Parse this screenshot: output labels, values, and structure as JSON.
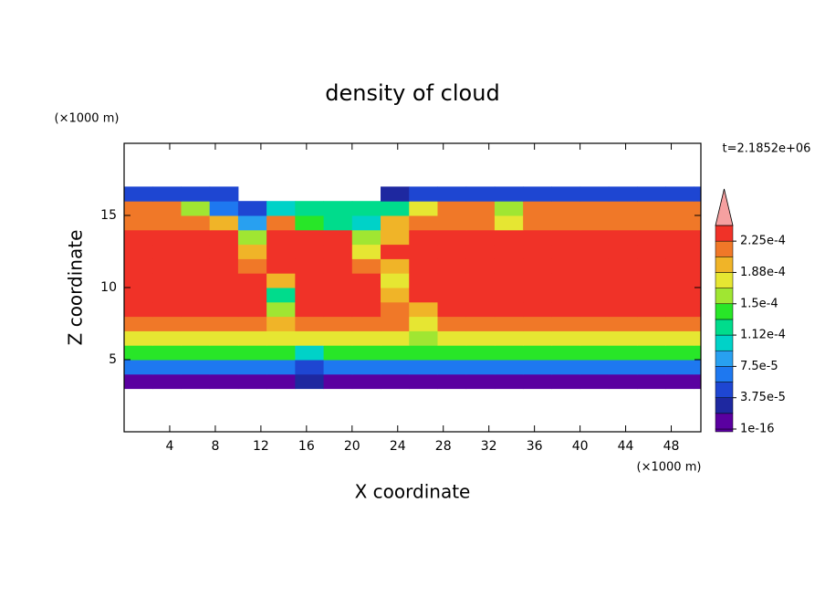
{
  "chart_data": {
    "type": "contour",
    "title": "density of cloud",
    "x_label": "X coordinate",
    "y_label": "Z coordinate",
    "x_unit_label": "(×1000 m)",
    "y_unit_label": "(×1000 m)",
    "time_label": "t=2.1852e+06",
    "xlim": [
      0,
      50.6
    ],
    "ylim": [
      0,
      20
    ],
    "xticks": [
      4,
      8,
      12,
      16,
      20,
      24,
      28,
      32,
      36,
      40,
      44,
      48
    ],
    "yticks": [
      5,
      10,
      15
    ],
    "field": {
      "x": [
        1.25,
        3.75,
        6.25,
        8.75,
        11.25,
        13.75,
        16.25,
        18.75,
        21.25,
        23.75,
        26.25,
        28.75,
        31.25,
        33.75,
        36.25,
        38.75,
        41.25,
        43.75,
        46.25,
        48.75,
        51.25
      ],
      "z": [
        3.5,
        4.5,
        5.5,
        6.5,
        7.5,
        8.5,
        9.5,
        10.5,
        11.5,
        12.5,
        13.5,
        14.5,
        15.5,
        16.5
      ],
      "values": [
        [
          1e-05,
          1e-05,
          1e-05,
          1e-05,
          1e-05,
          1e-05,
          3e-05,
          1e-05,
          1e-05,
          1e-05,
          1e-05,
          1e-05,
          1e-05,
          1e-05,
          1e-05,
          1e-05,
          1e-05,
          1e-05,
          1e-05,
          1e-05,
          1e-05
        ],
        [
          6e-05,
          6e-05,
          6e-05,
          6e-05,
          6e-05,
          6e-05,
          4e-05,
          6e-05,
          6e-05,
          6e-05,
          6e-05,
          6e-05,
          6e-05,
          6e-05,
          6e-05,
          6e-05,
          6e-05,
          6e-05,
          6e-05,
          6e-05,
          6e-05
        ],
        [
          0.00014,
          0.00014,
          0.00014,
          0.00014,
          0.00014,
          0.00014,
          0.0001,
          0.00014,
          0.00014,
          0.00014,
          0.00014,
          0.00014,
          0.00014,
          0.00014,
          0.00014,
          0.00014,
          0.00014,
          0.00014,
          0.00014,
          0.00014,
          0.00014
        ],
        [
          0.00018,
          0.00018,
          0.00018,
          0.00018,
          0.00018,
          0.00018,
          0.00018,
          0.00018,
          0.00018,
          0.00018,
          0.00015,
          0.00018,
          0.00018,
          0.00018,
          0.00018,
          0.00018,
          0.00018,
          0.00018,
          0.00018,
          0.00018,
          0.00018
        ],
        [
          0.00021,
          0.00021,
          0.00021,
          0.00021,
          0.00021,
          0.0002,
          0.00021,
          0.00021,
          0.00021,
          0.00021,
          0.00017,
          0.00021,
          0.00021,
          0.00021,
          0.00021,
          0.00021,
          0.00021,
          0.00021,
          0.00021,
          0.00021,
          0.00021
        ],
        [
          0.00023,
          0.00023,
          0.00023,
          0.00023,
          0.00023,
          0.00015,
          0.00023,
          0.00023,
          0.00023,
          0.00022,
          0.0002,
          0.00023,
          0.00023,
          0.00023,
          0.00023,
          0.00023,
          0.00023,
          0.00023,
          0.00023,
          0.00023,
          0.00023
        ],
        [
          0.00023,
          0.00023,
          0.00023,
          0.00023,
          0.00023,
          0.00012,
          0.00023,
          0.00023,
          0.00023,
          0.00019,
          0.00023,
          0.00023,
          0.00023,
          0.00023,
          0.00023,
          0.00023,
          0.00023,
          0.00023,
          0.00023,
          0.00023,
          0.00023
        ],
        [
          0.00023,
          0.00023,
          0.00023,
          0.00023,
          0.00023,
          0.0002,
          0.00023,
          0.00023,
          0.00023,
          0.00018,
          0.00023,
          0.00023,
          0.00023,
          0.00023,
          0.00023,
          0.00023,
          0.00023,
          0.00023,
          0.00023,
          0.00023,
          0.00023
        ],
        [
          0.00023,
          0.00023,
          0.00023,
          0.00023,
          0.00021,
          0.00023,
          0.00023,
          0.00023,
          0.00021,
          0.00019,
          0.00023,
          0.00023,
          0.00023,
          0.00023,
          0.00023,
          0.00023,
          0.00023,
          0.00023,
          0.00023,
          0.00023,
          0.00023
        ],
        [
          0.00023,
          0.00023,
          0.00023,
          0.00023,
          0.00019,
          0.00023,
          0.00023,
          0.00023,
          0.00017,
          0.00023,
          0.00023,
          0.00023,
          0.00023,
          0.00023,
          0.00023,
          0.00023,
          0.00023,
          0.00023,
          0.00023,
          0.00023,
          0.00023
        ],
        [
          0.00023,
          0.00023,
          0.00023,
          0.00023,
          0.00015,
          0.00023,
          0.00023,
          0.00023,
          0.00016,
          0.0002,
          0.00023,
          0.00023,
          0.00023,
          0.00023,
          0.00023,
          0.00023,
          0.00023,
          0.00023,
          0.00023,
          0.00023,
          0.00023
        ],
        [
          0.00022,
          0.00022,
          0.00022,
          0.00019,
          9e-05,
          0.00021,
          0.00014,
          0.00012,
          0.0001,
          0.00019,
          0.00022,
          0.00022,
          0.00022,
          0.00018,
          0.00022,
          0.00022,
          0.00022,
          0.00022,
          0.00022,
          0.00022,
          0.00022
        ],
        [
          0.00021,
          0.00021,
          0.00016,
          7e-05,
          5e-05,
          0.0001,
          0.00013,
          0.00013,
          0.00013,
          0.00012,
          0.00018,
          0.00021,
          0.00021,
          0.00015,
          0.00021,
          0.00021,
          0.00021,
          0.00021,
          0.00021,
          0.00021,
          0.00021
        ],
        [
          4e-05,
          4e-05,
          4e-05,
          4e-05,
          null,
          null,
          null,
          null,
          null,
          3e-05,
          5e-05,
          5e-05,
          5e-05,
          5e-05,
          5e-05,
          5e-05,
          5e-05,
          5e-05,
          5e-05,
          5e-05,
          5e-05
        ]
      ]
    },
    "colorbar": {
      "levels": [
        1e-16,
        1.875e-05,
        3.75e-05,
        5.625e-05,
        7.5e-05,
        9.375e-05,
        0.0001125,
        0.00013125,
        0.00015,
        0.00016875,
        0.0001875,
        0.00020625,
        0.000225,
        0.00024375
      ],
      "colors": [
        "#5a00a0",
        "#1e28a0",
        "#1e46d2",
        "#1e78f0",
        "#28a0f0",
        "#00d2c8",
        "#00dc8c",
        "#28e628",
        "#a0e632",
        "#e6e632",
        "#f0b428",
        "#f07828",
        "#f03228"
      ],
      "over_color": "#f5a0a0",
      "ticks": [
        {
          "value": 1e-16,
          "label": "1e-16"
        },
        {
          "value": 3.75e-05,
          "label": "3.75e-5"
        },
        {
          "value": 7.5e-05,
          "label": "7.5e-5"
        },
        {
          "value": 0.0001125,
          "label": "1.12e-4"
        },
        {
          "value": 0.00015,
          "label": "1.5e-4"
        },
        {
          "value": 0.0001875,
          "label": "1.88e-4"
        },
        {
          "value": 0.000225,
          "label": "2.25e-4"
        }
      ]
    }
  }
}
